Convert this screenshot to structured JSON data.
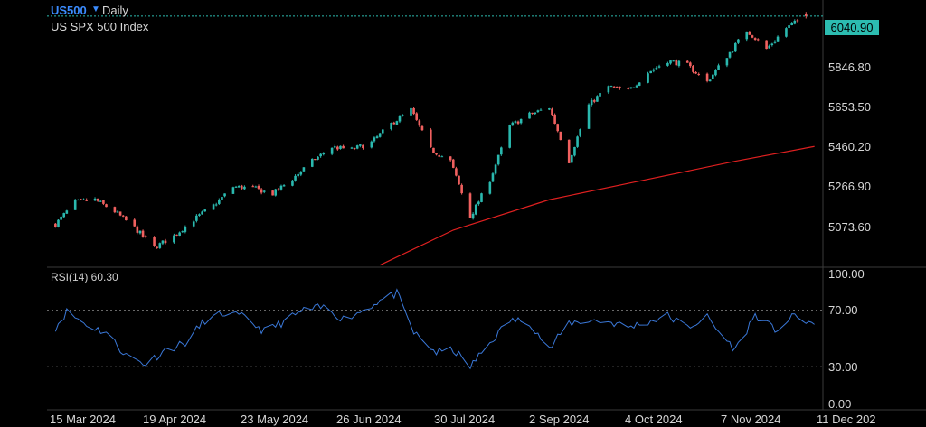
{
  "header": {
    "symbol": "US500",
    "interval": "Daily",
    "index_name": "US SPX 500 Index",
    "rsi_label": "RSI(14) 60.30"
  },
  "colors": {
    "background": "#000000",
    "up_candle": "#2ab8ae",
    "down_candle": "#f0605f",
    "moving_average": "#e02020",
    "rsi_line": "#3a78d8",
    "last_price_tag": "#2cbcb0"
  },
  "chart_data": [
    {
      "type": "candlestick",
      "last_price": "6040.90",
      "y_tick_labels": [
        "5846.80",
        "5653.50",
        "5460.20",
        "5266.90",
        "5073.60"
      ],
      "y_ticks": [
        5846.8,
        5653.5,
        5460.2,
        5266.9,
        5073.6
      ],
      "ylim": [
        4970,
        6110
      ],
      "x_tick_labels": [
        "15 Mar 2024",
        "19 Apr 2024",
        "23 May 2024",
        "26 Jun 2024",
        "30 Jul 2024",
        "2 Sep 2024",
        "4 Oct 2024",
        "7 Nov 2024",
        "11 Dec 202"
      ],
      "moving_average": {
        "dates": [
          "2024-07-04",
          "2024-07-30",
          "2024-09-02",
          "2024-10-04",
          "2024-11-07",
          "2024-12-05"
        ],
        "values": [
          4975,
          5125,
          5255,
          5335,
          5420,
          5483
        ]
      },
      "series": [
        {
          "dates": [
            "2024-03-11",
            "2024-03-18",
            "2024-03-25",
            "2024-04-01",
            "2024-04-08",
            "2024-04-15",
            "2024-04-22",
            "2024-04-29",
            "2024-05-06",
            "2024-05-13",
            "2024-05-20",
            "2024-05-27",
            "2024-06-03",
            "2024-06-10",
            "2024-06-17",
            "2024-06-24",
            "2024-07-01",
            "2024-07-08",
            "2024-07-15",
            "2024-07-22",
            "2024-07-29",
            "2024-08-05",
            "2024-08-12",
            "2024-08-19",
            "2024-08-26",
            "2024-09-02",
            "2024-09-09",
            "2024-09-16",
            "2024-09-23",
            "2024-09-30",
            "2024-10-07",
            "2024-10-14",
            "2024-10-21",
            "2024-10-28",
            "2024-11-04",
            "2024-11-11",
            "2024-11-18",
            "2024-11-25",
            "2024-12-02"
          ],
          "values": [
            5150,
            5245,
            5255,
            5205,
            5135,
            5050,
            5100,
            5170,
            5230,
            5310,
            5305,
            5280,
            5345,
            5420,
            5480,
            5470,
            5500,
            5580,
            5640,
            5470,
            5420,
            5180,
            5340,
            5570,
            5620,
            5650,
            5420,
            5660,
            5740,
            5720,
            5800,
            5850,
            5830,
            5760,
            5870,
            5980,
            5900,
            5990,
            6040.9
          ]
        }
      ]
    },
    {
      "type": "line",
      "title": "RSI(14) 60.30",
      "y_tick_labels": [
        "100.00",
        "70.00",
        "30.00",
        "0.00"
      ],
      "y_ticks": [
        100,
        70,
        30,
        0
      ],
      "ylim": [
        0,
        100
      ],
      "reference_lines": [
        70,
        30
      ],
      "series": [
        {
          "dates": [
            "2024-03-11",
            "2024-03-15",
            "2024-03-22",
            "2024-03-29",
            "2024-04-05",
            "2024-04-12",
            "2024-04-19",
            "2024-04-26",
            "2024-05-03",
            "2024-05-10",
            "2024-05-17",
            "2024-05-24",
            "2024-05-31",
            "2024-06-07",
            "2024-06-14",
            "2024-06-21",
            "2024-06-26",
            "2024-07-03",
            "2024-07-10",
            "2024-07-16",
            "2024-07-24",
            "2024-07-30",
            "2024-08-05",
            "2024-08-12",
            "2024-08-19",
            "2024-08-26",
            "2024-09-02",
            "2024-09-09",
            "2024-09-16",
            "2024-09-23",
            "2024-09-30",
            "2024-10-07",
            "2024-10-14",
            "2024-10-21",
            "2024-10-28",
            "2024-11-01",
            "2024-11-07",
            "2024-11-14",
            "2024-11-21",
            "2024-11-28",
            "2024-12-05"
          ],
          "values": [
            58,
            69,
            60,
            54,
            38,
            32,
            42,
            47,
            63,
            68,
            65,
            55,
            62,
            70,
            72,
            64,
            68,
            76,
            82,
            54,
            40,
            42,
            30,
            47,
            63,
            62,
            42,
            61,
            63,
            62,
            58,
            62,
            66,
            58,
            65,
            55,
            42,
            67,
            56,
            66,
            60
          ]
        }
      ]
    }
  ]
}
